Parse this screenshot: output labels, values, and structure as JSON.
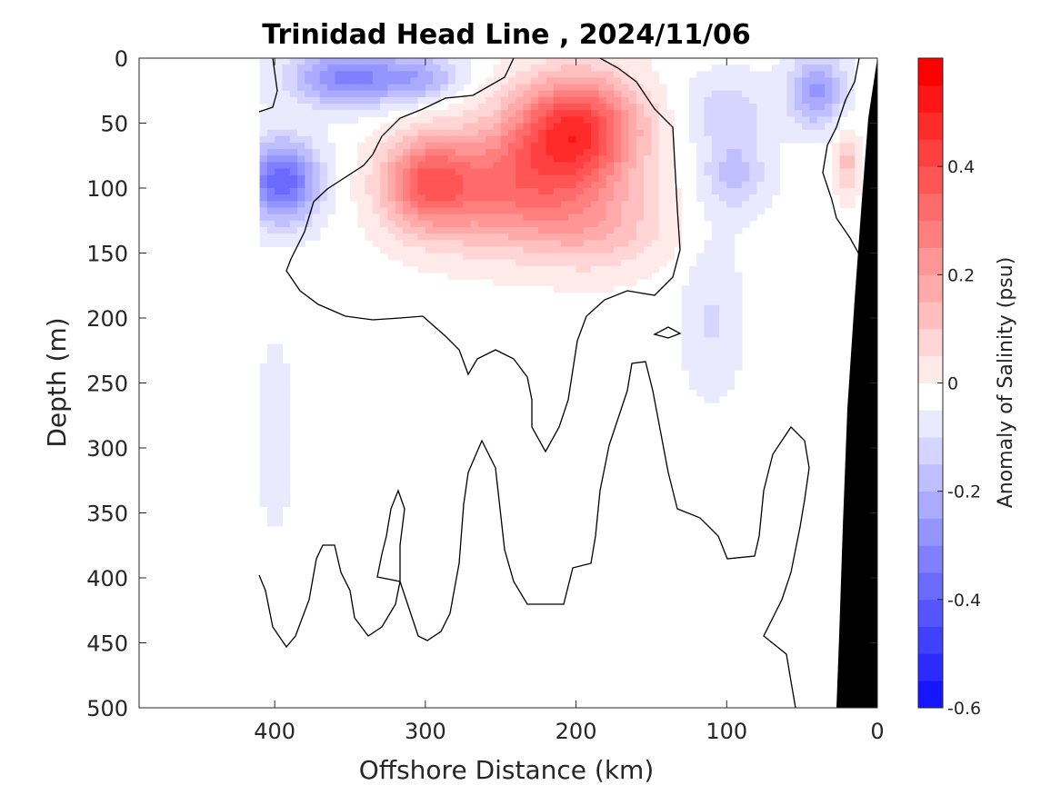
{
  "chart_data": {
    "type": "heatmap",
    "title": "Trinidad Head Line , 2024/11/06",
    "xlabel": "Offshore Distance (km)",
    "ylabel": "Depth (m)",
    "colorbar_label": "Anomaly of Salinity (psu)",
    "xlim": [
      490,
      0
    ],
    "ylim": [
      0,
      500
    ],
    "x_direction": "reversed",
    "y_direction": "reversed",
    "x_ticks": [
      400,
      300,
      200,
      100,
      0
    ],
    "y_ticks": [
      0,
      50,
      100,
      150,
      200,
      250,
      300,
      350,
      400,
      450,
      500
    ],
    "color_limits": [
      -0.6,
      0.6
    ],
    "color_step": 0.05,
    "colorbar_ticks": [
      -0.6,
      -0.4,
      -0.2,
      0,
      0.2,
      0.4
    ],
    "colormap": {
      "negative": "#0000ff",
      "zero": "#ffffff",
      "positive": "#ff0000"
    },
    "zero_contour_color": "#000000",
    "land_color": "#000000",
    "anomalies": [
      {
        "x": 200,
        "depth": 55,
        "value": 0.46,
        "sx": 42,
        "sz": 42
      },
      {
        "x": 250,
        "depth": 100,
        "value": 0.3,
        "sx": 60,
        "sz": 45
      },
      {
        "x": 300,
        "depth": 95,
        "value": 0.26,
        "sx": 28,
        "sz": 35
      },
      {
        "x": 185,
        "depth": 130,
        "value": 0.14,
        "sx": 45,
        "sz": 35
      },
      {
        "x": 20,
        "depth": 80,
        "value": 0.15,
        "sx": 8,
        "sz": 25
      },
      {
        "x": 395,
        "depth": 95,
        "value": -0.36,
        "sx": 25,
        "sz": 32
      },
      {
        "x": 350,
        "depth": 15,
        "value": -0.3,
        "sx": 40,
        "sz": 22
      },
      {
        "x": 300,
        "depth": 15,
        "value": -0.15,
        "sx": 25,
        "sz": 18
      },
      {
        "x": 40,
        "depth": 25,
        "value": -0.24,
        "sx": 18,
        "sz": 28
      },
      {
        "x": 95,
        "depth": 90,
        "value": -0.14,
        "sx": 22,
        "sz": 30
      },
      {
        "x": 100,
        "depth": 40,
        "value": -0.1,
        "sx": 30,
        "sz": 30
      },
      {
        "x": 110,
        "depth": 200,
        "value": -0.08,
        "sx": 20,
        "sz": 60
      },
      {
        "x": 400,
        "depth": 290,
        "value": -0.07,
        "sx": 12,
        "sz": 70
      }
    ]
  }
}
